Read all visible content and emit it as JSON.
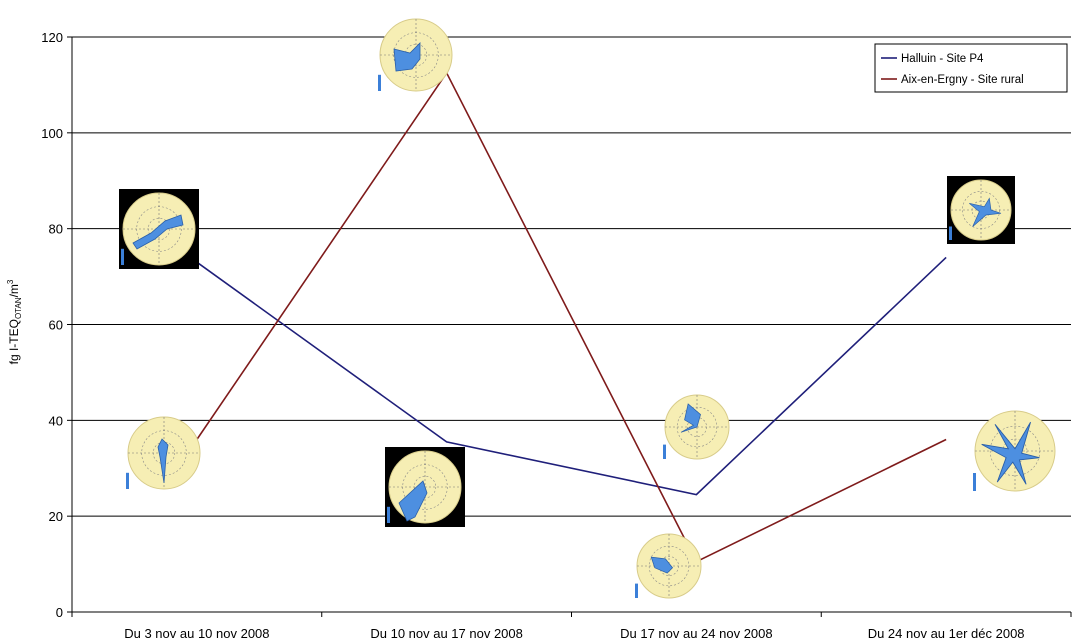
{
  "chart_data": {
    "type": "line",
    "categories": [
      "Du 3 nov au 10 nov 2008",
      "Du 10 nov au 17 nov 2008",
      "Du 17 nov au 24 nov 2008",
      "Du 24 nov au 1er déc 2008"
    ],
    "series": [
      {
        "name": "Halluin - Site P4",
        "color": "#1f1f7a",
        "values": [
          73,
          35.5,
          24.5,
          74
        ]
      },
      {
        "name": "Aix-en-Ergny - Site rural",
        "color": "#7f1b1b",
        "values": [
          36,
          112.5,
          10.5,
          36
        ]
      }
    ],
    "ylabel": "fg I-TEQ",
    "ylabel_subscript": "OTAN",
    "ylabel_unit": "/m",
    "ylabel_superscript": "3",
    "ylim": [
      0,
      120
    ],
    "yticks": [
      "0",
      "20",
      "40",
      "60",
      "80",
      "100",
      "120"
    ],
    "grid": true,
    "legend_position": "top-right",
    "wind_rose_icons": [
      {
        "series": "Halluin - Site P4",
        "category_index": 0,
        "style": "dark-frame",
        "shape": "diagonal-up-right"
      },
      {
        "series": "Aix-en-Ergny - Site rural",
        "category_index": 0,
        "style": "light",
        "shape": "vertical"
      },
      {
        "series": "Aix-en-Ergny - Site rural",
        "category_index": 1,
        "style": "light",
        "shape": "south-west-fan"
      },
      {
        "series": "Halluin - Site P4",
        "category_index": 1,
        "style": "dark-frame",
        "shape": "south-west-sector"
      },
      {
        "series": "Halluin - Site P4",
        "category_index": 2,
        "style": "light",
        "shape": "north-west-star"
      },
      {
        "series": "Aix-en-Ergny - Site rural",
        "category_index": 2,
        "style": "light",
        "shape": "north-west-sector"
      },
      {
        "series": "Halluin - Site P4",
        "category_index": 3,
        "style": "dark-frame",
        "shape": "north-east-star"
      },
      {
        "series": "Aix-en-Ergny - Site rural",
        "category_index": 3,
        "style": "light",
        "shape": "x-star"
      }
    ]
  }
}
